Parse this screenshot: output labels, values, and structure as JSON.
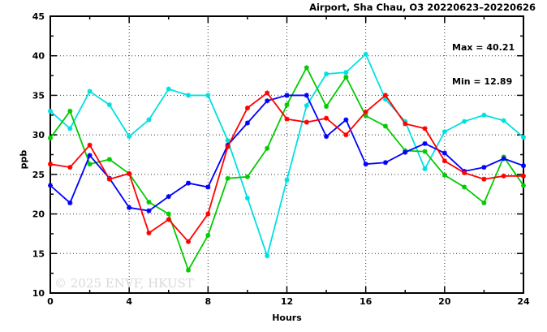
{
  "title": "Airport, Sha Chau, O3 20220623–20220626",
  "stats": {
    "max_label": "Max = 40.21",
    "min_label": "Min = 12.89"
  },
  "watermark": "© 2025 ENVF, HKUST",
  "chart_data": {
    "type": "line",
    "title": "Airport, Sha Chau, O3 20220623–20220626",
    "xlabel": "Hours",
    "ylabel": "ppb",
    "xlim": [
      0,
      24
    ],
    "ylim": [
      10,
      45
    ],
    "x_major_ticks": [
      0,
      4,
      8,
      12,
      16,
      20,
      24
    ],
    "x_minor_ticks": [
      2,
      6,
      10,
      14,
      18,
      22
    ],
    "y_major_ticks": [
      10,
      15,
      20,
      25,
      30,
      35,
      40,
      45
    ],
    "y_minor_ticks": [
      12.5,
      17.5,
      22.5,
      27.5,
      32.5,
      37.5,
      42.5
    ],
    "grid": true,
    "legend": "none",
    "max": 40.21,
    "min": 12.89,
    "x": [
      0,
      1,
      2,
      3,
      4,
      5,
      6,
      7,
      8,
      9,
      10,
      11,
      12,
      13,
      14,
      15,
      16,
      17,
      18,
      19,
      20,
      21,
      22,
      23,
      24
    ],
    "series": [
      {
        "name": "line-cyan",
        "color": "#00e0e0",
        "values": [
          33.0,
          30.8,
          35.5,
          33.8,
          29.8,
          31.9,
          35.8,
          35.0,
          35.0,
          29.3,
          22.0,
          14.7,
          24.3,
          33.7,
          37.7,
          37.9,
          40.2,
          34.5,
          31.7,
          25.7,
          30.4,
          31.7,
          32.5,
          31.8,
          29.7
        ]
      },
      {
        "name": "line-green",
        "color": "#00cc00",
        "values": [
          29.6,
          33.0,
          26.3,
          26.9,
          25.1,
          21.5,
          20.0,
          12.9,
          17.3,
          24.5,
          24.7,
          28.3,
          33.8,
          38.5,
          33.6,
          37.3,
          32.4,
          31.1,
          28.0,
          27.9,
          24.9,
          23.4,
          21.4,
          27.2,
          23.6
        ]
      },
      {
        "name": "line-blue",
        "color": "#0000ff",
        "values": [
          23.6,
          21.4,
          27.4,
          24.5,
          20.8,
          20.4,
          22.2,
          23.9,
          23.4,
          28.7,
          31.5,
          34.3,
          35.0,
          35.0,
          29.8,
          31.9,
          26.3,
          26.5,
          27.8,
          28.9,
          27.7,
          25.4,
          25.9,
          27.0,
          26.1
        ]
      },
      {
        "name": "line-red",
        "color": "#ff0000",
        "values": [
          26.3,
          25.9,
          28.7,
          24.4,
          25.1,
          17.6,
          19.3,
          16.5,
          20.0,
          28.5,
          33.4,
          35.3,
          32.0,
          31.6,
          32.1,
          30.0,
          32.9,
          35.0,
          31.4,
          30.8,
          26.7,
          25.2,
          24.4,
          24.8,
          24.8
        ]
      }
    ]
  }
}
